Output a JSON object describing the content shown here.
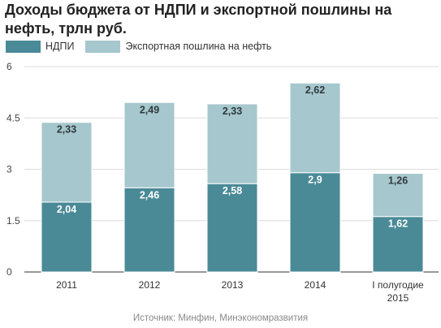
{
  "chart_data": {
    "type": "bar",
    "stacked": true,
    "title": "Доходы бюджета от НДПИ и экспортной пошлины на нефть, трлн руб.",
    "categories": [
      "2011",
      "2012",
      "2013",
      "2014",
      "I полугодие 2015"
    ],
    "series": [
      {
        "name": "НДПИ",
        "color": "#4a8a97",
        "values": [
          2.04,
          2.46,
          2.58,
          2.9,
          1.62
        ],
        "labels": [
          "2,04",
          "2,46",
          "2,58",
          "2,9",
          "1,62"
        ]
      },
      {
        "name": "Экспортная пошлина на нефть",
        "color": "#a6c7cd",
        "values": [
          2.33,
          2.49,
          2.33,
          2.62,
          1.26
        ],
        "labels": [
          "2,33",
          "2,49",
          "2,33",
          "2,62",
          "1,26"
        ]
      }
    ],
    "ylim": [
      0,
      6
    ],
    "yticks": [
      0,
      1.5,
      3,
      4.5,
      6
    ],
    "ytick_labels": [
      "0",
      "1.5",
      "3",
      "4.5",
      "6"
    ],
    "grid": true,
    "legend_position": "top-left",
    "xlabel": "",
    "ylabel": ""
  },
  "source": "Источник: Минфин, Минэкономразвития"
}
